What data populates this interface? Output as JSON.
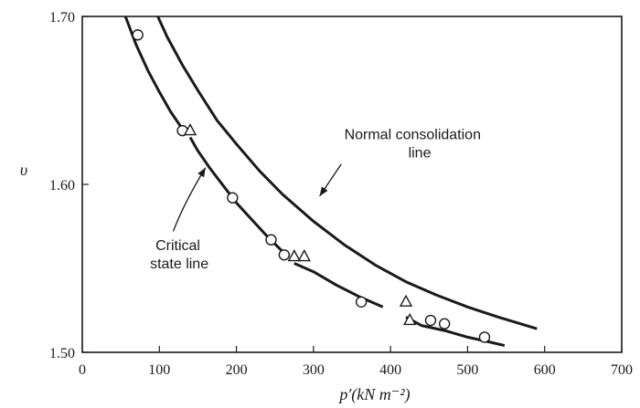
{
  "chart_data": {
    "type": "scatter",
    "title": "",
    "xlabel": "p′(kN m⁻²)",
    "ylabel": "υ",
    "xlim": [
      0,
      700
    ],
    "ylim": [
      1.5,
      1.7
    ],
    "xticks": [
      0,
      100,
      200,
      300,
      400,
      500,
      600,
      700
    ],
    "yticks": [
      1.5,
      1.6,
      1.7
    ],
    "xtick_labels": [
      "0",
      "100",
      "200",
      "300",
      "400",
      "500",
      "600",
      "700"
    ],
    "ytick_labels": [
      "1.50",
      "1.60",
      "1.70"
    ],
    "grid": false,
    "curves": [
      {
        "label_lines": [
          "Normal consolidation",
          "line"
        ],
        "x": [
          98,
          110,
          130,
          150,
          175,
          200,
          230,
          260,
          300,
          340,
          380,
          420,
          460,
          500,
          540,
          590
        ],
        "y": [
          1.7,
          1.688,
          1.671,
          1.656,
          1.638,
          1.624,
          1.608,
          1.594,
          1.578,
          1.564,
          1.552,
          1.542,
          1.534,
          1.527,
          1.521,
          1.514
        ],
        "gaps_after_index": []
      },
      {
        "label_lines": [
          "Critical",
          "state line"
        ],
        "x": [
          56,
          70,
          85,
          100,
          115,
          130,
          140,
          150,
          165,
          180,
          200,
          220,
          240,
          260,
          275,
          300,
          330,
          360,
          390,
          420,
          440,
          470,
          500,
          530,
          548
        ],
        "y": [
          1.7,
          1.683,
          1.668,
          1.655,
          1.643,
          1.633,
          1.628,
          1.62,
          1.61,
          1.601,
          1.589,
          1.579,
          1.569,
          1.56,
          1.553,
          1.548,
          1.54,
          1.533,
          1.527,
          1.521,
          1.516,
          1.513,
          1.509,
          1.506,
          1.504
        ],
        "gaps_after_index": [
          5,
          13,
          18
        ]
      }
    ],
    "series": [
      {
        "marker": "circle",
        "points": [
          [
            72,
            1.689
          ],
          [
            130,
            1.632
          ],
          [
            195,
            1.592
          ],
          [
            245,
            1.567
          ],
          [
            262,
            1.558
          ],
          [
            362,
            1.53
          ],
          [
            452,
            1.519
          ],
          [
            470,
            1.517
          ],
          [
            522,
            1.509
          ]
        ]
      },
      {
        "marker": "triangle",
        "points": [
          [
            140,
            1.632
          ],
          [
            275,
            1.557
          ],
          [
            288,
            1.557
          ],
          [
            420,
            1.53
          ],
          [
            425,
            1.519
          ]
        ]
      }
    ],
    "annotations": [
      {
        "lines": [
          "Normal consolidation",
          "line"
        ],
        "text_anchor": [
          340,
          1.627
        ],
        "arrow_from": [
          336,
          1.612
        ],
        "arrow_to": [
          308,
          1.593
        ]
      },
      {
        "lines": [
          "Critical",
          "state line"
        ],
        "text_anchor": [
          95,
          1.561
        ],
        "arrow_from": [
          118,
          1.572
        ],
        "arrow_to": [
          160,
          1.61
        ]
      }
    ]
  }
}
